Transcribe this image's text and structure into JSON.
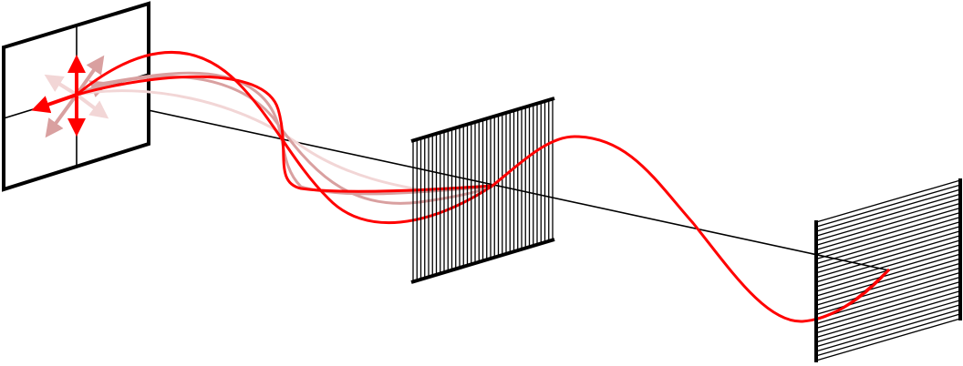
{
  "diagram": {
    "subject": "polarization-of-light",
    "colors": {
      "background": "#ffffff",
      "frame": "#000000",
      "wave_primary": "#ff0000",
      "wave_medium": "#d9a0a0",
      "wave_faint": "#f2d6d6",
      "beam_axis": "#000000"
    },
    "components": [
      {
        "id": "source-plane",
        "kind": "unpolarized-source"
      },
      {
        "id": "polarizer",
        "kind": "vertical-slit-filter"
      },
      {
        "id": "analyzer",
        "kind": "horizontal-slit-filter"
      }
    ]
  }
}
